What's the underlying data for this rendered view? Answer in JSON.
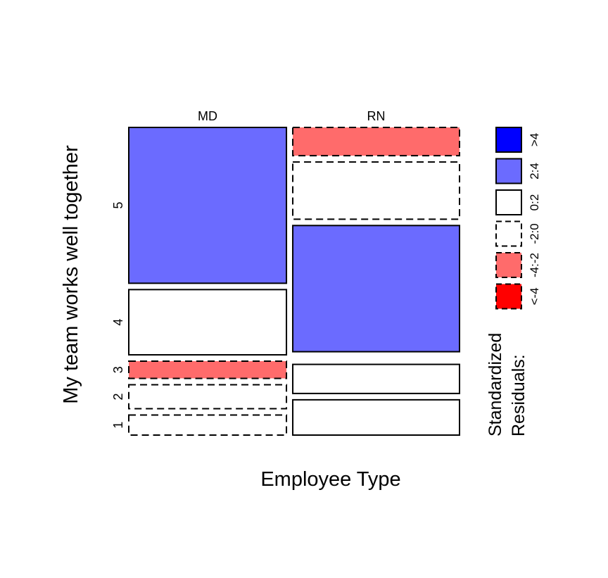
{
  "chart_data": {
    "type": "mosaic",
    "xlabel": "Employee Type",
    "ylabel": "My team works well together",
    "columns": [
      "MD",
      "RN"
    ],
    "rows": [
      "1",
      "2",
      "3",
      "4",
      "5"
    ],
    "column_proportions": [
      0.486,
      0.514
    ],
    "cells": {
      "MD": [
        {
          "row": "1",
          "proportion": 0.071,
          "residual_class": "-2:0"
        },
        {
          "row": "2",
          "proportion": 0.085,
          "residual_class": "-2:0"
        },
        {
          "row": "3",
          "proportion": 0.061,
          "residual_class": "-4:-2"
        },
        {
          "row": "4",
          "proportion": 0.231,
          "residual_class": "0:2"
        },
        {
          "row": "5",
          "proportion": 0.552,
          "residual_class": "2:4"
        }
      ],
      "RN": [
        {
          "row": "1",
          "proportion": 0.125,
          "residual_class": "0:2"
        },
        {
          "row": "2",
          "proportion": 0.103,
          "residual_class": "0:2"
        },
        {
          "row": "3",
          "proportion": 0.0,
          "residual_class": "0:2"
        },
        {
          "row": "4",
          "proportion": 0.447,
          "residual_class": "2:4"
        },
        {
          "row": "5",
          "proportion": 0.325,
          "residual_class": "-2:0",
          "upper_proportion": 0.1,
          "upper_residual_class": "-4:-2"
        }
      ]
    },
    "legend": {
      "title_lines": [
        "Standardized",
        "Residuals:"
      ],
      "placement": "right",
      "entries": [
        {
          "label": ">4",
          "color": "#0000ff",
          "dashed": false
        },
        {
          "label": "2:4",
          "color": "#6b6bff",
          "dashed": false
        },
        {
          "label": "0:2",
          "color": "#ffffff",
          "dashed": false
        },
        {
          "label": "-2:0",
          "color": "#ffffff",
          "dashed": true
        },
        {
          "label": "-4:-2",
          "color": "#ff6b6b",
          "dashed": true
        },
        {
          "label": "<-4",
          "color": "#ff0000",
          "dashed": true
        }
      ]
    }
  }
}
